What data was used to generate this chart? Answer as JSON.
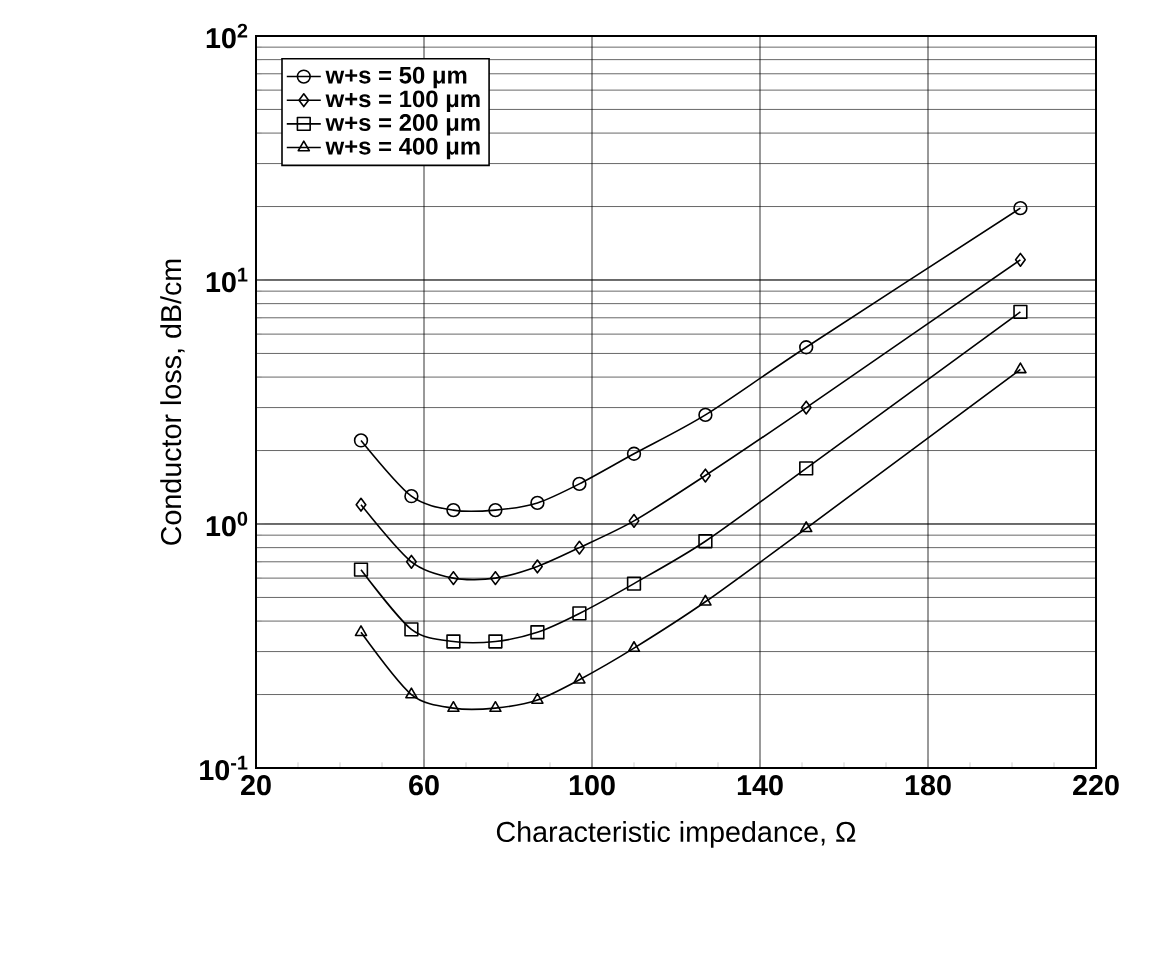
{
  "chart_data": {
    "type": "line",
    "xlabel": "Characteristic impedance, Ω",
    "ylabel": "Conductor loss, dB/cm",
    "log": "y",
    "grid": true,
    "legend": "top left",
    "line_style": "solid",
    "xlim": [
      20,
      220
    ],
    "xticks": [
      20,
      60,
      100,
      140,
      180,
      220
    ],
    "ylim": [
      0.1,
      100
    ],
    "yticks": [
      {
        "value": 0.1,
        "label": "10$^{-1}$"
      },
      {
        "value": 1,
        "label": "10$^{0}$"
      },
      {
        "value": 10,
        "label": "10$^{1}$"
      },
      {
        "value": 100,
        "label": "10$^{2}$"
      }
    ],
    "series": [
      {
        "name": "w+s = 50 μm",
        "color": "#000000",
        "marker": "circle",
        "x": [
          45,
          57,
          67,
          77,
          87,
          97,
          110,
          127,
          151,
          202
        ],
        "values": [
          2.2,
          1.3,
          1.14,
          1.14,
          1.22,
          1.46,
          1.94,
          2.8,
          5.3,
          19.7
        ]
      },
      {
        "name": "w+s = 100 μm",
        "color": "#000000",
        "marker": "diamond",
        "x": [
          45,
          57,
          67,
          77,
          87,
          97,
          110,
          127,
          151,
          202
        ],
        "values": [
          1.2,
          0.7,
          0.6,
          0.6,
          0.67,
          0.8,
          1.03,
          1.58,
          3.0,
          12.1
        ]
      },
      {
        "name": "w+s = 200 μm",
        "color": "#000000",
        "marker": "square",
        "x": [
          45,
          57,
          67,
          77,
          87,
          97,
          110,
          127,
          151,
          202
        ],
        "values": [
          0.65,
          0.37,
          0.33,
          0.33,
          0.36,
          0.43,
          0.57,
          0.85,
          1.69,
          7.4
        ]
      },
      {
        "name": "w+s = 400 μm",
        "color": "#000000",
        "marker": "triangle",
        "x": [
          45,
          57,
          67,
          77,
          87,
          97,
          110,
          127,
          151,
          202
        ],
        "values": [
          0.36,
          0.2,
          0.176,
          0.176,
          0.19,
          0.23,
          0.31,
          0.48,
          0.96,
          4.3
        ]
      }
    ]
  }
}
